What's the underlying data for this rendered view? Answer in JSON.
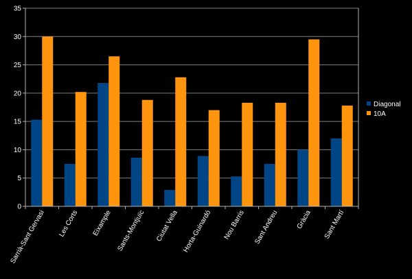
{
  "chart_data": {
    "type": "bar",
    "title": "",
    "xlabel": "",
    "ylabel": "",
    "ylim": [
      0,
      35
    ],
    "yticks": [
      0,
      5,
      10,
      15,
      20,
      25,
      30,
      35
    ],
    "grid": true,
    "legend_position": "right",
    "categories": [
      "Sarrià-Sant Gervasi",
      "Les Corts",
      "Eixample",
      "Sants-Montjuïc",
      "Ciutat Vella",
      "Horta-Guinardó",
      "Nou Barris",
      "Sant Andreu",
      "Gràcia",
      "Sant Martí"
    ],
    "series": [
      {
        "name": "Diagonal",
        "color": "#004586",
        "values": [
          15.3,
          7.5,
          21.8,
          8.6,
          2.9,
          8.9,
          5.3,
          7.5,
          10.0,
          12.0
        ]
      },
      {
        "name": "10A",
        "color": "#ff950e",
        "values": [
          30.0,
          20.2,
          26.5,
          18.8,
          22.8,
          17.0,
          18.3,
          18.3,
          29.5,
          17.8
        ]
      }
    ]
  }
}
